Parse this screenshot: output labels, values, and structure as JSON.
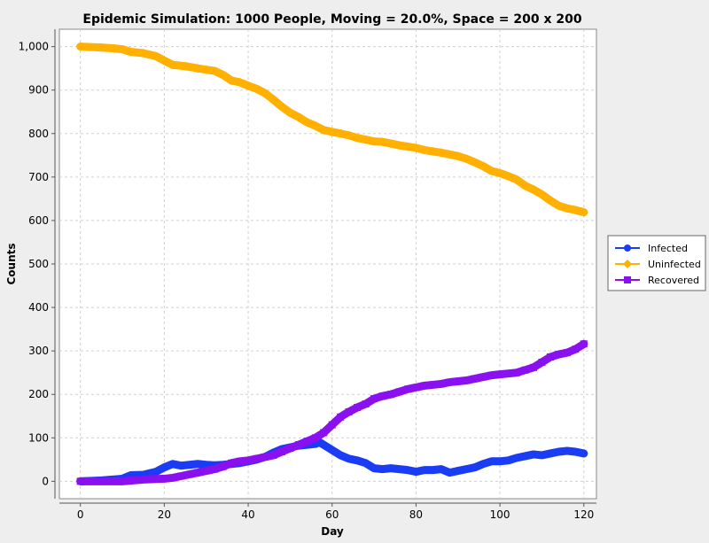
{
  "chart_data": {
    "type": "line",
    "title": "Epidemic Simulation: 1000 People, Moving = 20.0%, Space = 200 x 200",
    "xlabel": "Day",
    "ylabel": "Counts",
    "xlim": [
      -5,
      123
    ],
    "ylim": [
      -40,
      1040
    ],
    "x_ticks": [
      0,
      20,
      40,
      60,
      80,
      100,
      120
    ],
    "y_ticks": [
      0,
      100,
      200,
      300,
      400,
      500,
      600,
      700,
      800,
      900,
      1000
    ],
    "y_tick_labels": [
      "0",
      "100",
      "200",
      "300",
      "400",
      "500",
      "600",
      "700",
      "800",
      "900",
      "1,000"
    ],
    "grid": true,
    "legend_position": "right",
    "series": [
      {
        "name": "Infected",
        "color": "#1a3cf5",
        "marker": "circle",
        "x": [
          0,
          5,
          10,
          12,
          15,
          18,
          20,
          22,
          24,
          26,
          28,
          30,
          32,
          34,
          36,
          38,
          40,
          42,
          44,
          46,
          48,
          50,
          52,
          54,
          56,
          57,
          58,
          60,
          62,
          64,
          66,
          68,
          70,
          72,
          74,
          76,
          78,
          80,
          82,
          84,
          86,
          88,
          90,
          92,
          94,
          96,
          98,
          100,
          102,
          104,
          106,
          108,
          110,
          112,
          114,
          116,
          118,
          120
        ],
        "y": [
          0,
          2,
          6,
          14,
          15,
          22,
          32,
          40,
          36,
          38,
          40,
          38,
          37,
          38,
          40,
          42,
          46,
          50,
          56,
          66,
          74,
          78,
          82,
          84,
          86,
          90,
          84,
          72,
          60,
          52,
          48,
          42,
          30,
          28,
          30,
          28,
          26,
          22,
          26,
          26,
          28,
          20,
          24,
          28,
          32,
          40,
          46,
          46,
          48,
          54,
          58,
          62,
          60,
          64,
          68,
          70,
          68,
          64
        ]
      },
      {
        "name": "Uninfected",
        "color": "#ffb000",
        "marker": "diamond",
        "x": [
          0,
          5,
          8,
          10,
          12,
          15,
          18,
          20,
          22,
          25,
          28,
          30,
          32,
          34,
          36,
          38,
          40,
          42,
          44,
          46,
          48,
          50,
          52,
          54,
          56,
          58,
          60,
          62,
          64,
          66,
          68,
          70,
          72,
          74,
          76,
          78,
          80,
          82,
          84,
          86,
          88,
          90,
          92,
          94,
          96,
          98,
          100,
          102,
          104,
          106,
          108,
          110,
          112,
          114,
          116,
          118,
          120
        ],
        "y": [
          1000,
          998,
          996,
          994,
          988,
          985,
          978,
          968,
          958,
          955,
          950,
          947,
          944,
          935,
          922,
          918,
          910,
          903,
          893,
          878,
          862,
          848,
          838,
          826,
          818,
          808,
          804,
          800,
          796,
          790,
          786,
          782,
          781,
          777,
          773,
          770,
          767,
          762,
          759,
          756,
          752,
          748,
          742,
          734,
          725,
          714,
          709,
          702,
          694,
          680,
          671,
          660,
          646,
          634,
          628,
          624,
          619
        ]
      },
      {
        "name": "Recovered",
        "color": "#8b10f0",
        "marker": "square",
        "x": [
          0,
          5,
          10,
          15,
          20,
          22,
          24,
          26,
          28,
          30,
          32,
          34,
          36,
          38,
          40,
          42,
          44,
          46,
          48,
          50,
          52,
          54,
          56,
          58,
          60,
          62,
          64,
          66,
          68,
          70,
          72,
          74,
          76,
          78,
          80,
          82,
          84,
          86,
          88,
          90,
          92,
          94,
          96,
          98,
          100,
          102,
          104,
          106,
          108,
          110,
          112,
          114,
          116,
          118,
          120
        ],
        "y": [
          0,
          0,
          0,
          4,
          6,
          8,
          12,
          16,
          20,
          24,
          28,
          34,
          42,
          46,
          48,
          52,
          56,
          60,
          68,
          76,
          84,
          92,
          100,
          112,
          130,
          148,
          160,
          170,
          178,
          190,
          196,
          200,
          206,
          212,
          216,
          220,
          222,
          224,
          228,
          230,
          232,
          236,
          240,
          244,
          246,
          248,
          250,
          256,
          262,
          274,
          286,
          292,
          296,
          304,
          316
        ]
      }
    ]
  }
}
